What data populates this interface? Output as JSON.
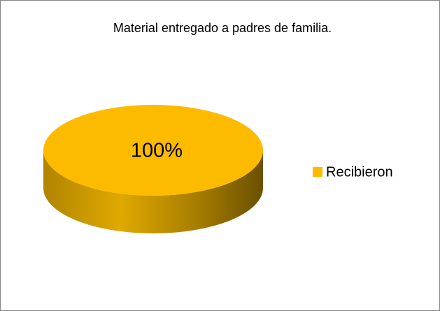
{
  "chart_data": {
    "type": "pie",
    "title": "Material entregado a padres de familia.",
    "categories": [
      "Recibieron"
    ],
    "values": [
      100
    ],
    "value_labels": [
      "100%"
    ],
    "colors": [
      "#FDBB00"
    ],
    "legend": "right"
  }
}
